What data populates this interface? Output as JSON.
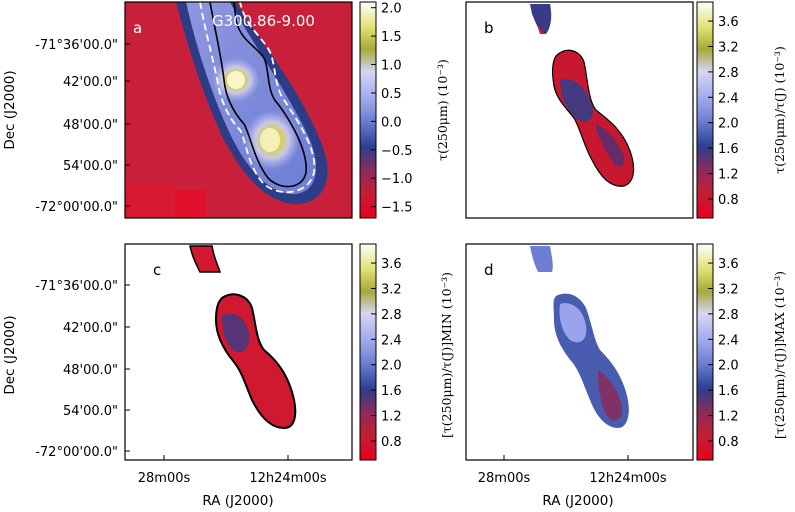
{
  "chart_data": [
    {
      "panel_letter": "a",
      "type": "heatmap",
      "title": "G300.86-9.00",
      "ylabel": "Dec (J2000)",
      "xlabel": "",
      "y_tick_labels": [
        "-71°36'00.0\"",
        "42'00.0\"",
        "48'00.0\"",
        "54'00.0\"",
        "-72°00'00.0\""
      ],
      "x_tick_labels": [],
      "colorbar_label": "",
      "colorbar_ticks": [
        "2.0",
        "1.5",
        "1.0",
        "0.5",
        "0.0",
        "−0.5",
        "−1.0",
        "−1.5"
      ],
      "colorbar_range": [
        -1.7,
        2.1
      ],
      "clumps": [
        {
          "peak": 2.0,
          "position": "upper"
        },
        {
          "peak": 1.8,
          "position": "lower"
        }
      ]
    },
    {
      "panel_letter": "b",
      "type": "heatmap",
      "title": "",
      "ylabel": "τ(250μm) (10⁻³)",
      "xlabel": "",
      "y_tick_labels": [],
      "x_tick_labels": [],
      "colorbar_label": "τ(250μm)/τ(J) (10⁻³)",
      "colorbar_ticks": [
        "3.6",
        "3.2",
        "2.8",
        "2.4",
        "2.0",
        "1.6",
        "1.2",
        "0.8"
      ],
      "colorbar_range": [
        0.5,
        3.9
      ]
    },
    {
      "panel_letter": "c",
      "type": "heatmap",
      "title": "",
      "ylabel": "Dec (J2000)",
      "xlabel": "RA (J2000)",
      "y_tick_labels": [
        "-71°36'00.0\"",
        "42'00.0\"",
        "48'00.0\"",
        "54'00.0\"",
        "-72°00'00.0\""
      ],
      "x_tick_labels": [
        "28m00s",
        "12h24m00s"
      ],
      "colorbar_label": "[τ(250μm)/τ(J)]MIN (10⁻³)",
      "colorbar_ticks": [
        "3.6",
        "3.2",
        "2.8",
        "2.4",
        "2.0",
        "1.6",
        "1.2",
        "0.8"
      ],
      "colorbar_range": [
        0.5,
        3.9
      ]
    },
    {
      "panel_letter": "d",
      "type": "heatmap",
      "title": "",
      "ylabel": "",
      "xlabel": "RA (J2000)",
      "y_tick_labels": [],
      "x_tick_labels": [
        "28m00s",
        "12h24m00s"
      ],
      "colorbar_label": "[τ(250μm)/τ(J)]MAX (10⁻³)",
      "colorbar_ticks": [
        "3.6",
        "3.2",
        "2.8",
        "2.4",
        "2.0",
        "1.6",
        "1.2",
        "0.8"
      ],
      "colorbar_range": [
        0.5,
        3.9
      ]
    }
  ],
  "colormap_stops": [
    "#e8001e",
    "#a5193e",
    "#6d7ed4",
    "#a8b0f0",
    "#d5d7f2",
    "#c9c84a",
    "#f2f2a8",
    "#ffffff"
  ]
}
